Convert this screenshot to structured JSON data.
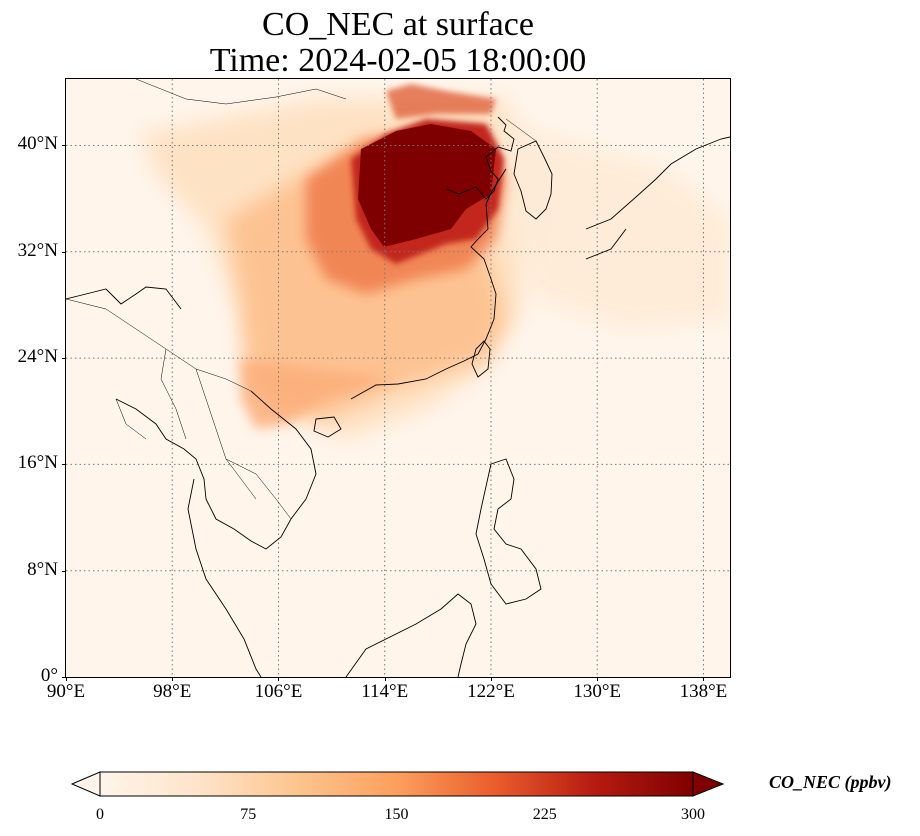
{
  "title": {
    "line1": "CO_NEC at surface",
    "line2": "Time: 2024-02-05 18:00:00"
  },
  "map": {
    "variable": "CO_NEC",
    "level": "surface",
    "colormap": [
      "#fff5eb",
      "#fdd0a2",
      "#fdae6b",
      "#f16913",
      "#d94801",
      "#a50f15",
      "#7f0000"
    ],
    "gridlines": "dotted",
    "lon_range": [
      90,
      140
    ],
    "lat_range": [
      0,
      45
    ],
    "lat_ticks": [
      {
        "value": 0,
        "label": "0°"
      },
      {
        "value": 8,
        "label": "8°N"
      },
      {
        "value": 16,
        "label": "16°N"
      },
      {
        "value": 24,
        "label": "24°N"
      },
      {
        "value": 32,
        "label": "32°N"
      },
      {
        "value": 40,
        "label": "40°N"
      }
    ],
    "lon_ticks": [
      {
        "value": 90,
        "label": "90°E"
      },
      {
        "value": 98,
        "label": "98°E"
      },
      {
        "value": 106,
        "label": "106°E"
      },
      {
        "value": 114,
        "label": "114°E"
      },
      {
        "value": 122,
        "label": "122°E"
      },
      {
        "value": 130,
        "label": "130°E"
      },
      {
        "value": 138,
        "label": "138°E"
      }
    ]
  },
  "colorbar": {
    "title": "CO_NEC (ppbv)",
    "min": 0,
    "max": 300,
    "extend": "both",
    "ticks": [
      {
        "value": 0,
        "label": "0"
      },
      {
        "value": 75,
        "label": "75"
      },
      {
        "value": 150,
        "label": "150"
      },
      {
        "value": 225,
        "label": "225"
      },
      {
        "value": 300,
        "label": "300"
      }
    ]
  }
}
